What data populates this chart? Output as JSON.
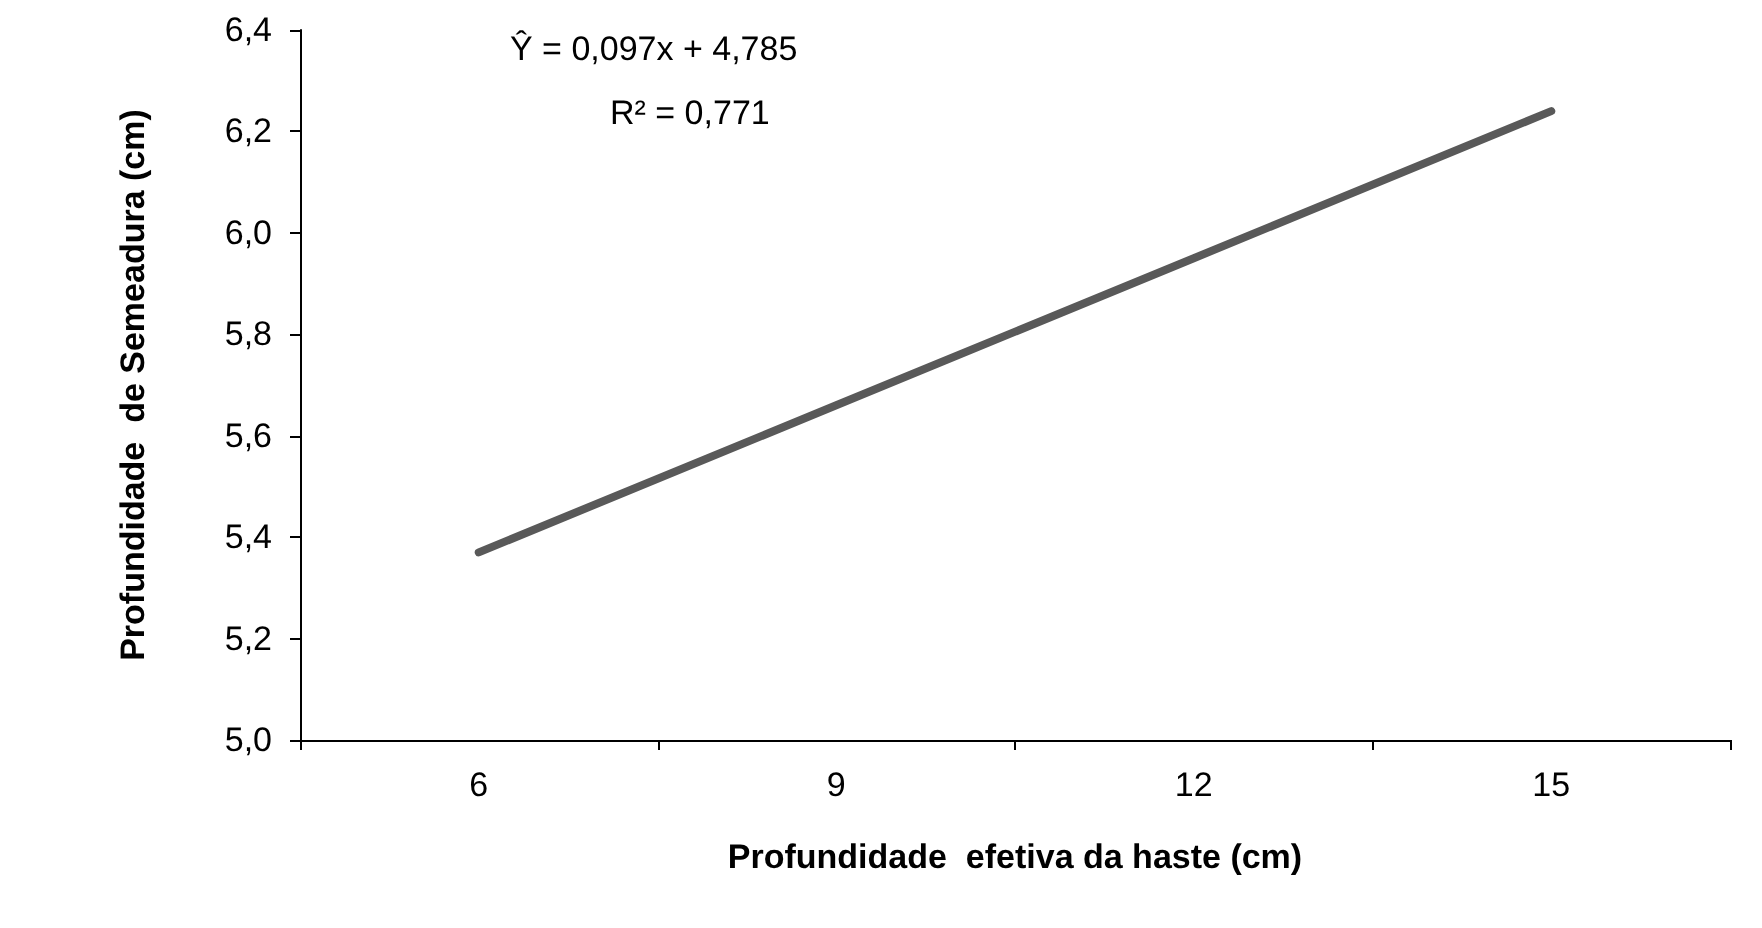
{
  "chart_data": {
    "type": "line",
    "xlabel": "Profundidade  efetiva da haste (cm)",
    "ylabel": "Profundidade  de Semeadura (cm)",
    "categories": [
      "6",
      "9",
      "12",
      "15"
    ],
    "series": [
      {
        "color": "#595959",
        "values": [
          5.37,
          5.66,
          5.95,
          6.24
        ]
      }
    ],
    "ylim": [
      5.0,
      6.4
    ],
    "yticks": [
      {
        "value": 5.0,
        "label": "5,0"
      },
      {
        "value": 5.2,
        "label": "5,2"
      },
      {
        "value": 5.4,
        "label": "5,4"
      },
      {
        "value": 5.6,
        "label": "5,6"
      },
      {
        "value": 5.8,
        "label": "5,8"
      },
      {
        "value": 6.0,
        "label": "6,0"
      },
      {
        "value": 6.2,
        "label": "6,2"
      },
      {
        "value": 6.4,
        "label": "6,4"
      }
    ],
    "annotations": [
      "Ŷ = 0,097x + 4,785",
      "R² = 0,771"
    ],
    "grid": false,
    "marker": "none",
    "line_style": "solid"
  }
}
